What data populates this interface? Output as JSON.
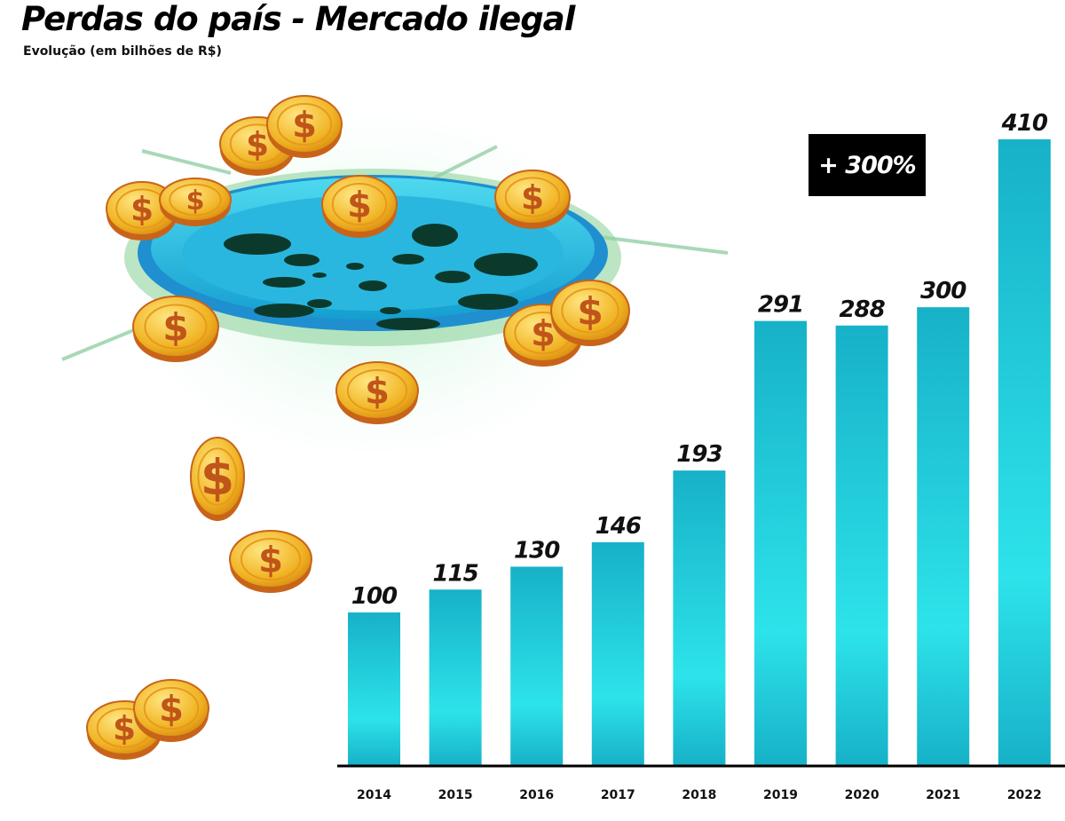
{
  "title": "Perdas do país - Mercado ilegal",
  "subtitle": "Evolução (em bilhões de R$)",
  "badge": "+ 300%",
  "colors": {
    "bar_edge": "#17b1c8",
    "bar_center": "#2de3ea",
    "axis": "#000000",
    "badge_bg": "#000000"
  },
  "illustration": "drain-with-gold-coins",
  "chart_data": {
    "type": "bar",
    "title": "Perdas do país - Mercado ilegal",
    "subtitle": "Evolução (em bilhões de R$)",
    "categories": [
      "2014",
      "2015",
      "2016",
      "2017",
      "2018",
      "2019",
      "2020",
      "2021",
      "2022"
    ],
    "values": [
      100,
      115,
      130,
      146,
      193,
      291,
      288,
      300,
      410
    ],
    "data_labels": [
      "100",
      "115",
      "130",
      "146",
      "193",
      "291",
      "288",
      "300",
      "410"
    ],
    "xlabel": "",
    "ylabel": "",
    "ylim": [
      0,
      410
    ],
    "grid": false,
    "annotation": "+ 300%"
  }
}
